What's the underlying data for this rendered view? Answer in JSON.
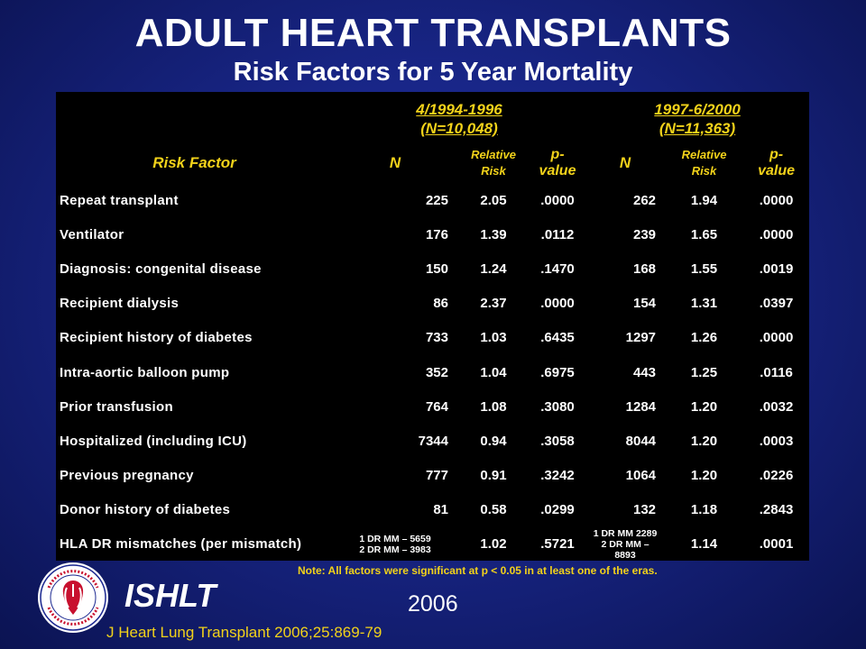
{
  "title": "ADULT HEART TRANSPLANTS",
  "subtitle": "Risk Factors for 5 Year Mortality",
  "eras": [
    {
      "line1": "4/1994-1996",
      "line2": "(N=10,048)"
    },
    {
      "line1": "1997-6/2000",
      "line2": "(N=11,363)"
    }
  ],
  "headers": {
    "risk_factor": "Risk Factor",
    "n": "N",
    "relative_risk_1": "Relative",
    "relative_risk_2": "Risk",
    "p_value_1": "p-",
    "p_value_2": "value"
  },
  "rows": [
    {
      "factor": "Repeat transplant",
      "n1": "225",
      "rr1": "2.05",
      "p1": ".0000",
      "n2": "262",
      "rr2": "1.94",
      "p2": ".0000"
    },
    {
      "factor": "Ventilator",
      "n1": "176",
      "rr1": "1.39",
      "p1": ".0112",
      "n2": "239",
      "rr2": "1.65",
      "p2": ".0000"
    },
    {
      "factor": "Diagnosis: congenital disease",
      "n1": "150",
      "rr1": "1.24",
      "p1": ".1470",
      "n2": "168",
      "rr2": "1.55",
      "p2": ".0019"
    },
    {
      "factor": "Recipient dialysis",
      "n1": "86",
      "rr1": "2.37",
      "p1": ".0000",
      "n2": "154",
      "rr2": "1.31",
      "p2": ".0397"
    },
    {
      "factor": "Recipient history of diabetes",
      "n1": "733",
      "rr1": "1.03",
      "p1": ".6435",
      "n2": "1297",
      "rr2": "1.26",
      "p2": ".0000"
    },
    {
      "factor": "Intra-aortic balloon pump",
      "n1": "352",
      "rr1": "1.04",
      "p1": ".6975",
      "n2": "443",
      "rr2": "1.25",
      "p2": ".0116"
    },
    {
      "factor": "Prior transfusion",
      "n1": "764",
      "rr1": "1.08",
      "p1": ".3080",
      "n2": "1284",
      "rr2": "1.20",
      "p2": ".0032"
    },
    {
      "factor": "Hospitalized (including ICU)",
      "n1": "7344",
      "rr1": "0.94",
      "p1": ".3058",
      "n2": "8044",
      "rr2": "1.20",
      "p2": ".0003"
    },
    {
      "factor": "Previous pregnancy",
      "n1": "777",
      "rr1": "0.91",
      "p1": ".3242",
      "n2": "1064",
      "rr2": "1.20",
      "p2": ".0226"
    },
    {
      "factor": "Donor history of diabetes",
      "n1": "81",
      "rr1": "0.58",
      "p1": ".0299",
      "n2": "132",
      "rr2": "1.18",
      "p2": ".2843"
    }
  ],
  "hla_row": {
    "factor": "HLA DR mismatches (per mismatch)",
    "n1_line1": "1 DR MM – 5659",
    "n1_line2": "2 DR MM – 3983",
    "rr1": "1.02",
    "p1": ".5721",
    "n2_line1": "1 DR MM 2289",
    "n2_line2": "2 DR MM –",
    "n2_line3": "8893",
    "rr2": "1.14",
    "p2": ".0001"
  },
  "note": "Note: All factors were significant at p < 0.05 in at least one of the eras.",
  "org": "ISHLT",
  "year": "2006",
  "citation": "J Heart Lung Transplant 2006;25:869-79",
  "colors": {
    "background": "#1a2790",
    "header_yellow": "#f2d21a",
    "table_bg": "#000000",
    "text_white": "#ffffff",
    "logo_red": "#c8102e"
  }
}
